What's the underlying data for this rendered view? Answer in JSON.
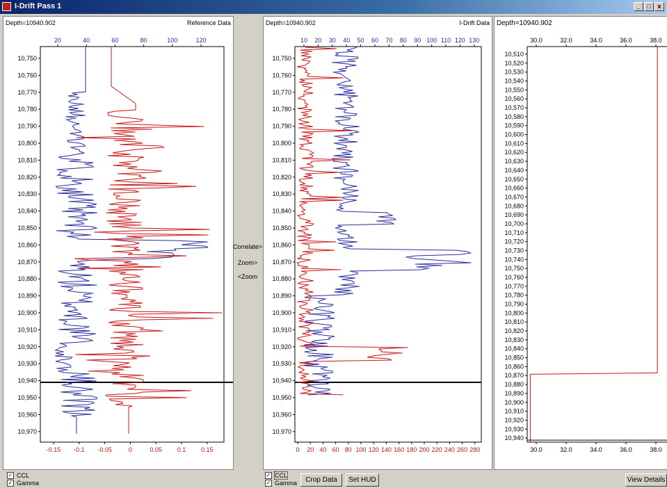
{
  "window": {
    "title": "I-Drift Pass 1",
    "min": "_",
    "max": "□",
    "close": "x"
  },
  "left_panel": {
    "depth_label": "Depth=10940.902",
    "title": "Reference Data",
    "top_ticks": [
      "20",
      "40",
      "60",
      "80",
      "100",
      "120"
    ],
    "bottom_ticks": [
      "-0.15",
      "-0.1",
      "-0.05",
      "0",
      "0.05",
      "0.1",
      "0.15"
    ],
    "depths": [
      "10,750",
      "10,760",
      "10,770",
      "10,780",
      "10,790",
      "10,800",
      "10,810",
      "10,820",
      "10,830",
      "10,840",
      "10,850",
      "10,860",
      "10,870",
      "10,880",
      "10,890",
      "10,900",
      "10,910",
      "10,920",
      "10,930",
      "10,940",
      "10,950",
      "10,960",
      "10,970"
    ],
    "cursor_depth": 10940.9
  },
  "middle_panel": {
    "depth_label": "Depth=10940.902",
    "title": "I-Drift Data",
    "top_ticks": [
      "10",
      "20",
      "30",
      "40",
      "50",
      "60",
      "70",
      "80",
      "90",
      "100",
      "110",
      "120",
      "130"
    ],
    "bottom_ticks": [
      "0",
      "20",
      "40",
      "60",
      "80",
      "100",
      "120",
      "140",
      "160",
      "180",
      "200",
      "220",
      "240",
      "260",
      "280"
    ],
    "depths": [
      "10,750",
      "10,760",
      "10,770",
      "10,780",
      "10,790",
      "10,800",
      "10,810",
      "10,820",
      "10,830",
      "10,840",
      "10,850",
      "10,860",
      "10,870",
      "10,880",
      "10,890",
      "10,900",
      "10,910",
      "10,920",
      "10,930",
      "10,940",
      "10,950",
      "10,960",
      "10,970"
    ],
    "cursor_depth": 10940.9
  },
  "right_panel": {
    "depth_label": "Depth=10940.902",
    "top_ticks": [
      "30.0",
      "32.0",
      "34.0",
      "36.0",
      "38.0"
    ],
    "bottom_ticks": [
      "30.0",
      "32.0",
      "34.0",
      "36.0",
      "38.0"
    ],
    "depths": [
      "10,510",
      "10,520",
      "10,530",
      "10,540",
      "10,550",
      "10,560",
      "10,570",
      "10,580",
      "10,590",
      "10,600",
      "10,610",
      "10,620",
      "10,630",
      "10,640",
      "10,650",
      "10,660",
      "10,670",
      "10,680",
      "10,690",
      "10,700",
      "10,710",
      "10,720",
      "10,730",
      "10,740",
      "10,750",
      "10,760",
      "10,770",
      "10,780",
      "10,790",
      "10,800",
      "10,810",
      "10,820",
      "10,830",
      "10,840",
      "10,850",
      "10,860",
      "10,870",
      "10,880",
      "10,890",
      "10,900",
      "10,910",
      "10,920",
      "10,930",
      "10,940"
    ],
    "drift_curve": {
      "upper_value": 38.1,
      "lower_value": 29.6,
      "step_depth": 10867
    }
  },
  "middle_buttons": {
    "correlate": "Correlate>",
    "zoom_in": "Zoom>",
    "zoom_out": "<Zoom"
  },
  "left_checks": [
    {
      "label": "CCL",
      "checked": true
    },
    {
      "label": "Gamma",
      "checked": true
    }
  ],
  "middle_checks": [
    {
      "label": "CCL",
      "checked": true
    },
    {
      "label": "Gamma",
      "checked": true
    }
  ],
  "buttons": {
    "crop": "Crop Data",
    "set_hud": "Set HUD",
    "view_details": "View Details"
  },
  "colors": {
    "blue_curve": "#2a2a9c",
    "red_curve": "#c81414",
    "cursor": "#000000",
    "title_bar": "#0a246a"
  }
}
